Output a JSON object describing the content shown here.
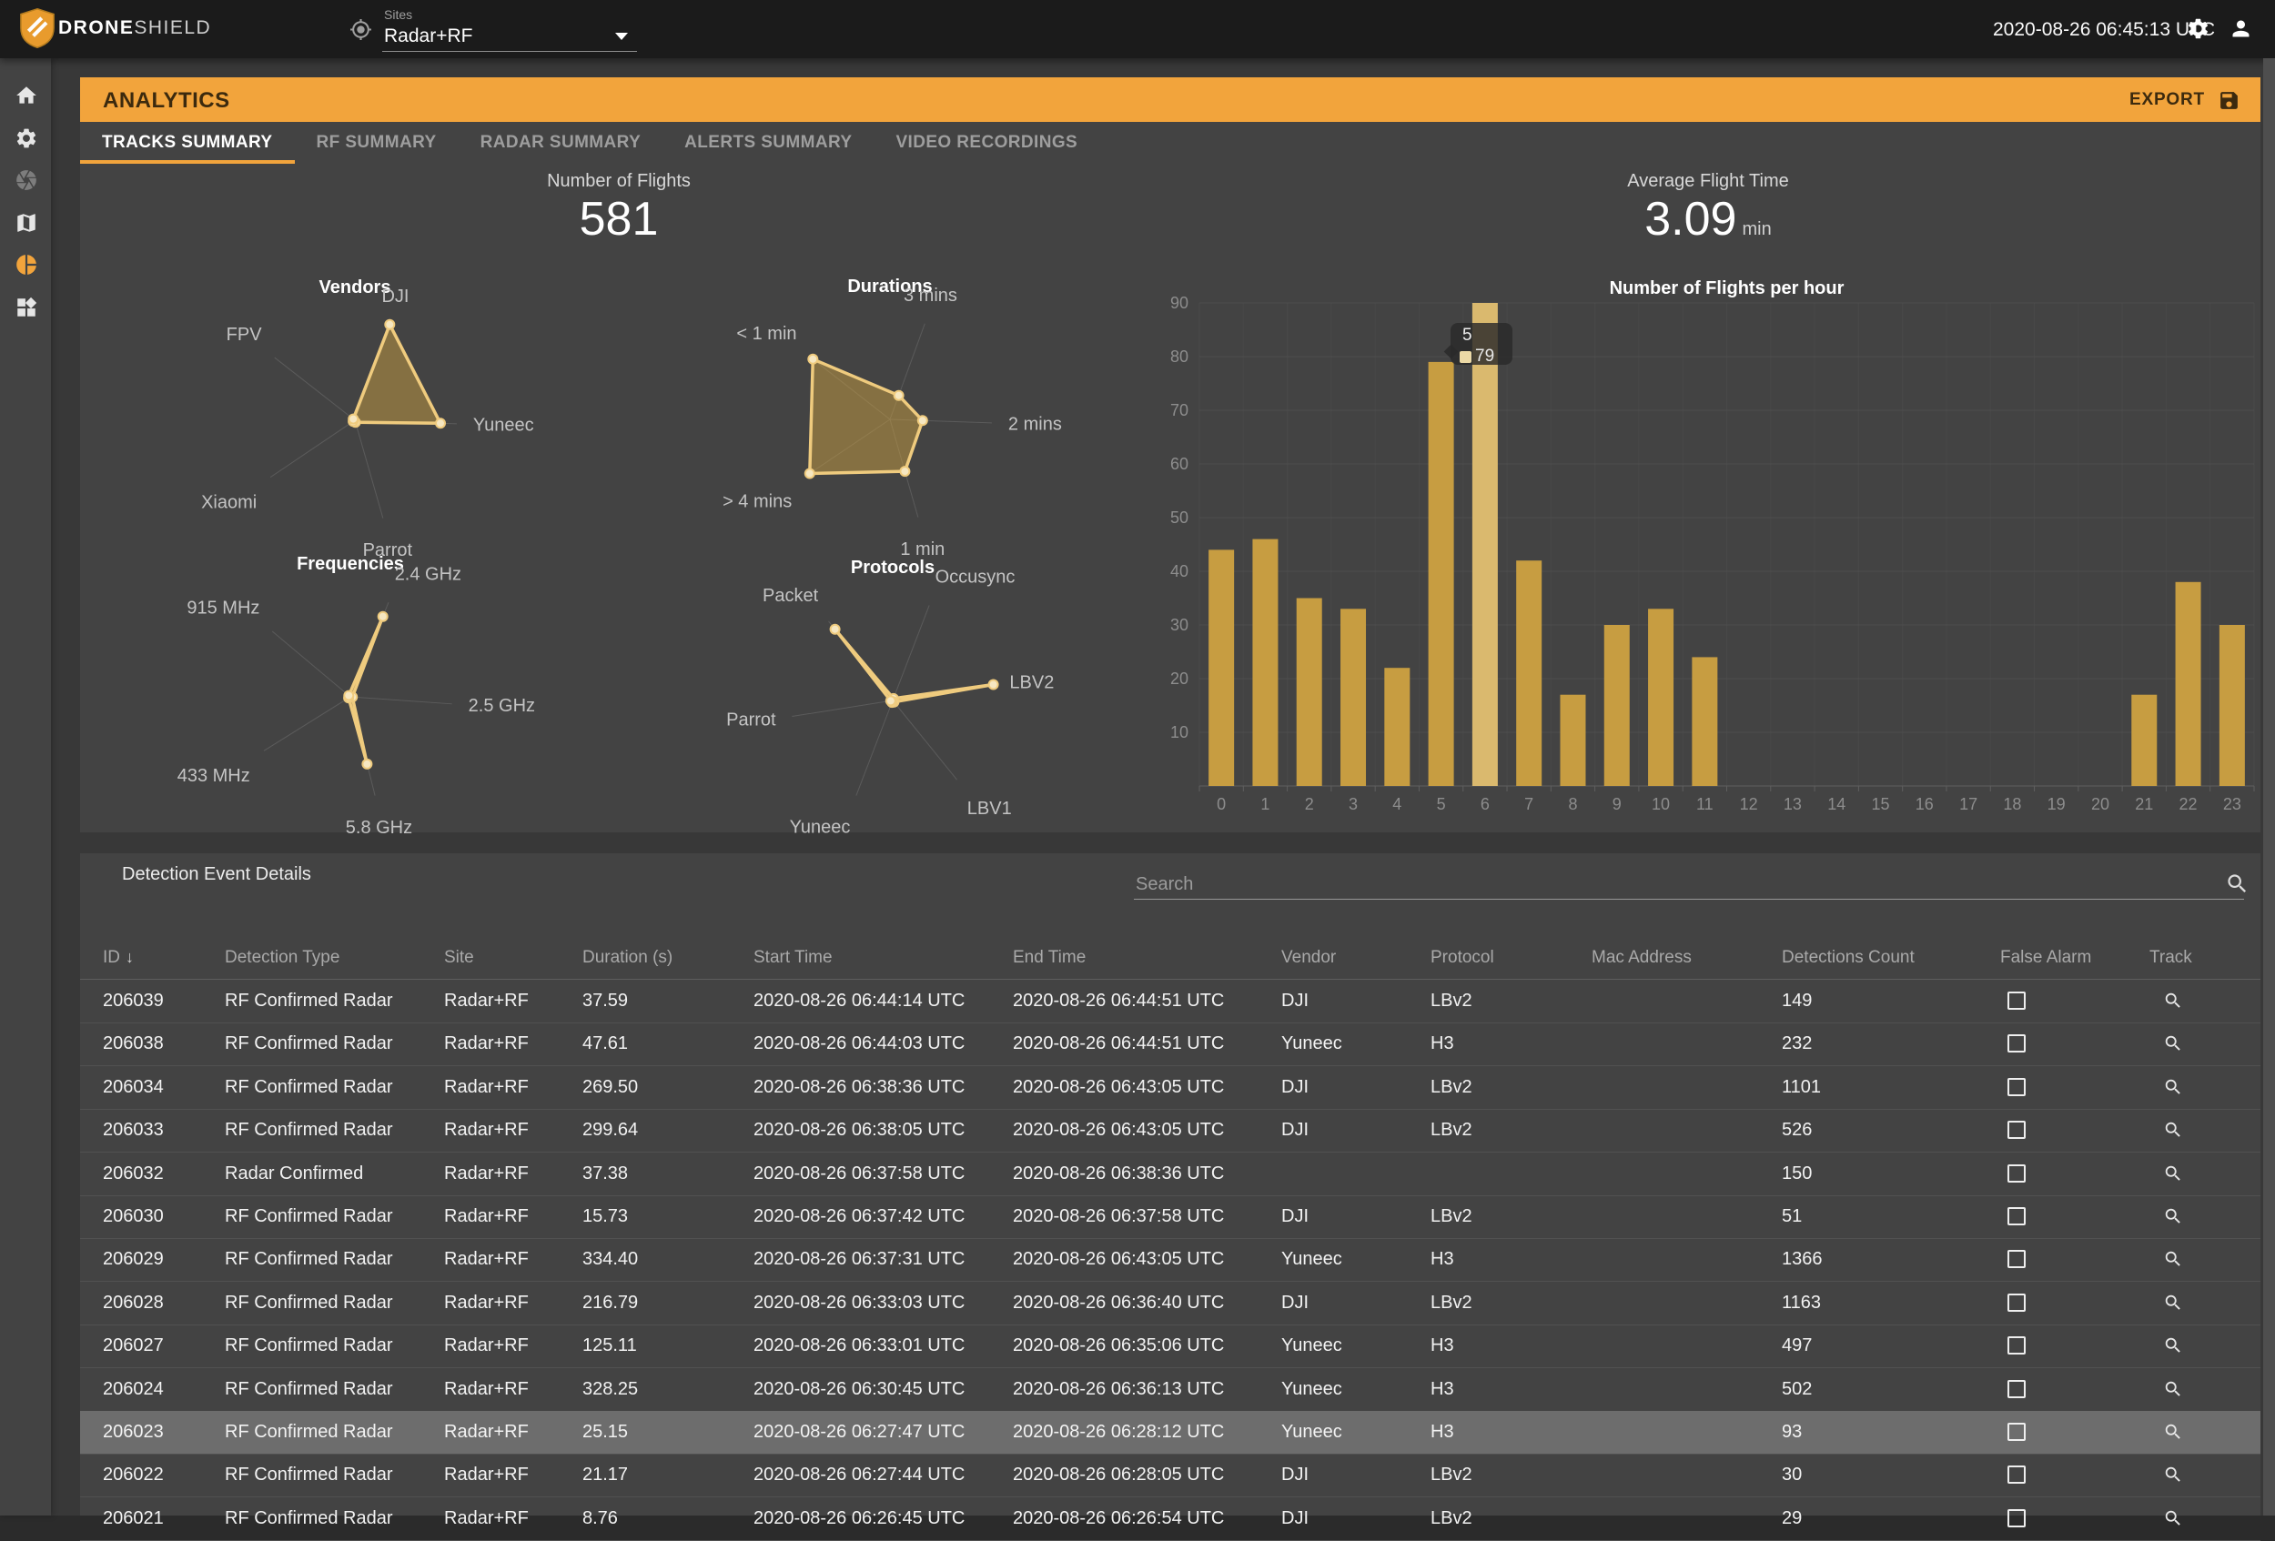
{
  "topbar": {
    "brand_primary": "DRONE",
    "brand_secondary": "SHIELD",
    "sites_label": "Sites",
    "site_selected": "Radar+RF",
    "clock": "2020-08-26 06:45:13 UTC"
  },
  "sidebar": {
    "items": [
      {
        "icon": "home-icon",
        "state": "normal"
      },
      {
        "icon": "settings-icon",
        "state": "normal"
      },
      {
        "icon": "camera-icon",
        "state": "disabled"
      },
      {
        "icon": "map-icon",
        "state": "normal"
      },
      {
        "icon": "pie-chart-icon",
        "state": "active"
      },
      {
        "icon": "widgets-icon",
        "state": "normal"
      }
    ]
  },
  "page_header": {
    "title": "ANALYTICS",
    "export_label": "EXPORT"
  },
  "tabs": [
    {
      "label": "TRACKS SUMMARY",
      "active": true
    },
    {
      "label": "RF SUMMARY",
      "active": false
    },
    {
      "label": "RADAR SUMMARY",
      "active": false
    },
    {
      "label": "ALERTS SUMMARY",
      "active": false
    },
    {
      "label": "VIDEO RECORDINGS",
      "active": false
    }
  ],
  "stats": [
    {
      "label": "Number of Flights",
      "value": "581",
      "unit": ""
    },
    {
      "label": "Average Flight Time",
      "value": "3.09",
      "unit": "min"
    }
  ],
  "chart_data": [
    {
      "type": "radar",
      "title": "Vendors",
      "max": 1,
      "axes": [
        {
          "label": "DJI",
          "angle": 70,
          "value": 1.0
        },
        {
          "label": "Yuneec",
          "angle": -2,
          "value": 0.84
        },
        {
          "label": "Parrot",
          "angle": -74,
          "value": 0.02
        },
        {
          "label": "Xiaomi",
          "angle": -146,
          "value": 0.02
        },
        {
          "label": "FPV",
          "angle": 142,
          "value": 0.02
        }
      ]
    },
    {
      "type": "radar",
      "title": "Durations",
      "max": 1,
      "axes": [
        {
          "label": "3 mins",
          "angle": 70,
          "value": 0.25
        },
        {
          "label": "2 mins",
          "angle": -2,
          "value": 0.32
        },
        {
          "label": "1 min",
          "angle": -74,
          "value": 0.53
        },
        {
          "label": "> 4 mins",
          "angle": -146,
          "value": 0.95
        },
        {
          "label": "< 1 min",
          "angle": 142,
          "value": 0.96
        }
      ]
    },
    {
      "type": "radar",
      "title": "Frequencies",
      "max": 1,
      "axes": [
        {
          "label": "2.4 GHz",
          "angle": 68,
          "value": 0.85
        },
        {
          "label": "2.5 GHz",
          "angle": -4,
          "value": 0.02
        },
        {
          "label": "5.8 GHz",
          "angle": -76,
          "value": 0.68
        },
        {
          "label": "433 MHz",
          "angle": -148,
          "value": 0.02
        },
        {
          "label": "915 MHz",
          "angle": 140,
          "value": 0.02
        }
      ]
    },
    {
      "type": "radar",
      "title": "Protocols",
      "max": 1,
      "axes": [
        {
          "label": "Occusync",
          "angle": 69,
          "value": 0.02
        },
        {
          "label": "LBV2",
          "angle": 9,
          "value": 1.0
        },
        {
          "label": "LBV1",
          "angle": -51,
          "value": 0.02
        },
        {
          "label": "Yuneec",
          "angle": -111,
          "value": 0.02
        },
        {
          "label": "Parrot",
          "angle": -171,
          "value": 0.02
        },
        {
          "label": "Packet",
          "angle": 129,
          "value": 0.9
        }
      ]
    },
    {
      "type": "bar",
      "title": "Number of Flights per hour",
      "categories": [
        "0",
        "1",
        "2",
        "3",
        "4",
        "5",
        "6",
        "7",
        "8",
        "9",
        "10",
        "11",
        "12",
        "13",
        "14",
        "15",
        "16",
        "17",
        "18",
        "19",
        "20",
        "21",
        "22",
        "23"
      ],
      "values": [
        44,
        46,
        35,
        33,
        22,
        79,
        90,
        42,
        17,
        30,
        33,
        24,
        0,
        0,
        0,
        0,
        0,
        0,
        0,
        0,
        0,
        17,
        38,
        30
      ],
      "ylim": [
        0,
        90
      ],
      "ytick_step": 10,
      "grid": true,
      "highlighted_category": "6",
      "tooltip": {
        "category": "5",
        "value": "79"
      }
    }
  ],
  "detail_table": {
    "title": "Detection Event Details",
    "search_placeholder": "Search",
    "sort": {
      "column": "ID",
      "direction": "desc"
    },
    "columns": [
      "ID",
      "Detection Type",
      "Site",
      "Duration (s)",
      "Start Time",
      "End Time",
      "Vendor",
      "Protocol",
      "Mac Address",
      "Detections Count",
      "False Alarm",
      "Track"
    ],
    "rows": [
      {
        "id": "206039",
        "type": "RF Confirmed Radar",
        "site": "Radar+RF",
        "duration": "37.59",
        "start": "2020-08-26 06:44:14 UTC",
        "end": "2020-08-26 06:44:51 UTC",
        "vendor": "DJI",
        "protocol": "LBv2",
        "mac": "",
        "count": "149",
        "false_alarm": false,
        "highlighted": false
      },
      {
        "id": "206038",
        "type": "RF Confirmed Radar",
        "site": "Radar+RF",
        "duration": "47.61",
        "start": "2020-08-26 06:44:03 UTC",
        "end": "2020-08-26 06:44:51 UTC",
        "vendor": "Yuneec",
        "protocol": "H3",
        "mac": "",
        "count": "232",
        "false_alarm": false,
        "highlighted": false
      },
      {
        "id": "206034",
        "type": "RF Confirmed Radar",
        "site": "Radar+RF",
        "duration": "269.50",
        "start": "2020-08-26 06:38:36 UTC",
        "end": "2020-08-26 06:43:05 UTC",
        "vendor": "DJI",
        "protocol": "LBv2",
        "mac": "",
        "count": "1101",
        "false_alarm": false,
        "highlighted": false
      },
      {
        "id": "206033",
        "type": "RF Confirmed Radar",
        "site": "Radar+RF",
        "duration": "299.64",
        "start": "2020-08-26 06:38:05 UTC",
        "end": "2020-08-26 06:43:05 UTC",
        "vendor": "DJI",
        "protocol": "LBv2",
        "mac": "",
        "count": "526",
        "false_alarm": false,
        "highlighted": false
      },
      {
        "id": "206032",
        "type": "Radar Confirmed",
        "site": "Radar+RF",
        "duration": "37.38",
        "start": "2020-08-26 06:37:58 UTC",
        "end": "2020-08-26 06:38:36 UTC",
        "vendor": "",
        "protocol": "",
        "mac": "",
        "count": "150",
        "false_alarm": false,
        "highlighted": false
      },
      {
        "id": "206030",
        "type": "RF Confirmed Radar",
        "site": "Radar+RF",
        "duration": "15.73",
        "start": "2020-08-26 06:37:42 UTC",
        "end": "2020-08-26 06:37:58 UTC",
        "vendor": "DJI",
        "protocol": "LBv2",
        "mac": "",
        "count": "51",
        "false_alarm": false,
        "highlighted": false
      },
      {
        "id": "206029",
        "type": "RF Confirmed Radar",
        "site": "Radar+RF",
        "duration": "334.40",
        "start": "2020-08-26 06:37:31 UTC",
        "end": "2020-08-26 06:43:05 UTC",
        "vendor": "Yuneec",
        "protocol": "H3",
        "mac": "",
        "count": "1366",
        "false_alarm": false,
        "highlighted": false
      },
      {
        "id": "206028",
        "type": "RF Confirmed Radar",
        "site": "Radar+RF",
        "duration": "216.79",
        "start": "2020-08-26 06:33:03 UTC",
        "end": "2020-08-26 06:36:40 UTC",
        "vendor": "DJI",
        "protocol": "LBv2",
        "mac": "",
        "count": "1163",
        "false_alarm": false,
        "highlighted": false
      },
      {
        "id": "206027",
        "type": "RF Confirmed Radar",
        "site": "Radar+RF",
        "duration": "125.11",
        "start": "2020-08-26 06:33:01 UTC",
        "end": "2020-08-26 06:35:06 UTC",
        "vendor": "Yuneec",
        "protocol": "H3",
        "mac": "",
        "count": "497",
        "false_alarm": false,
        "highlighted": false
      },
      {
        "id": "206024",
        "type": "RF Confirmed Radar",
        "site": "Radar+RF",
        "duration": "328.25",
        "start": "2020-08-26 06:30:45 UTC",
        "end": "2020-08-26 06:36:13 UTC",
        "vendor": "Yuneec",
        "protocol": "H3",
        "mac": "",
        "count": "502",
        "false_alarm": false,
        "highlighted": false
      },
      {
        "id": "206023",
        "type": "RF Confirmed Radar",
        "site": "Radar+RF",
        "duration": "25.15",
        "start": "2020-08-26 06:27:47 UTC",
        "end": "2020-08-26 06:28:12 UTC",
        "vendor": "Yuneec",
        "protocol": "H3",
        "mac": "",
        "count": "93",
        "false_alarm": false,
        "highlighted": true
      },
      {
        "id": "206022",
        "type": "RF Confirmed Radar",
        "site": "Radar+RF",
        "duration": "21.17",
        "start": "2020-08-26 06:27:44 UTC",
        "end": "2020-08-26 06:28:05 UTC",
        "vendor": "DJI",
        "protocol": "LBv2",
        "mac": "",
        "count": "30",
        "false_alarm": false,
        "highlighted": false
      },
      {
        "id": "206021",
        "type": "RF Confirmed Radar",
        "site": "Radar+RF",
        "duration": "8.76",
        "start": "2020-08-26 06:26:45 UTC",
        "end": "2020-08-26 06:26:54 UTC",
        "vendor": "DJI",
        "protocol": "LBv2",
        "mac": "",
        "count": "29",
        "false_alarm": false,
        "highlighted": false
      }
    ]
  },
  "colors": {
    "accent": "#F2A43C",
    "bar_fill": "#C79D41",
    "bar_highlight": "#DAB96E",
    "radar_stroke": "#EFCB7E",
    "radar_fill": "rgba(199,157,65,0.5)",
    "radar_dot": "#F6E7C1",
    "topbar_bg": "#1b1b1b",
    "panel_bg": "#434343",
    "page_bg": "#383838",
    "row_highlight": "#6d6d6d"
  }
}
